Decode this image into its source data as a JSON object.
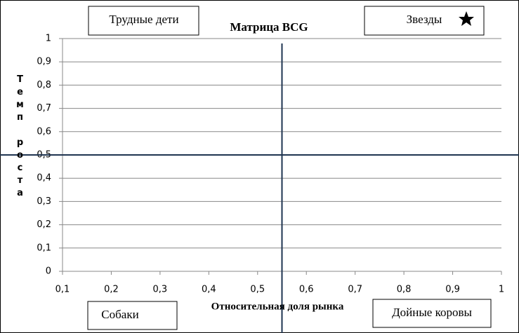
{
  "chart_data": {
    "type": "quadrant",
    "title": "Матрица BCG",
    "x_label": "Относительная доля рынка",
    "y_label": "Темп роста",
    "xlim": [
      0.1,
      1
    ],
    "ylim": [
      0,
      1
    ],
    "xticks": [
      {
        "value": 0.1,
        "label": "0,1"
      },
      {
        "value": 0.2,
        "label": "0,2"
      },
      {
        "value": 0.3,
        "label": "0,3"
      },
      {
        "value": 0.4,
        "label": "0,4"
      },
      {
        "value": 0.5,
        "label": "0,5"
      },
      {
        "value": 0.6,
        "label": "0,6"
      },
      {
        "value": 0.7,
        "label": "0,7"
      },
      {
        "value": 0.8,
        "label": "0,8"
      },
      {
        "value": 0.9,
        "label": "0,9"
      },
      1
    ],
    "yticks": [
      0,
      {
        "value": 0.1,
        "label": "0,1"
      },
      {
        "value": 0.2,
        "label": "0,2"
      },
      {
        "value": 0.3,
        "label": "0,3"
      },
      {
        "value": 0.4,
        "label": "0,4"
      },
      {
        "value": 0.5,
        "label": "0,5"
      },
      {
        "value": 0.6,
        "label": "0,6"
      },
      {
        "value": 0.7,
        "label": "0,7"
      },
      {
        "value": 0.8,
        "label": "0,8"
      },
      {
        "value": 0.9,
        "label": "0,9"
      },
      1
    ],
    "grid": true,
    "divider_x": 0.55,
    "divider_y": 0.5,
    "divider_color": "#1f3450",
    "quadrants": [
      "Трудные дети",
      "Звезды",
      "Собаки",
      "Дойные коровы"
    ]
  }
}
